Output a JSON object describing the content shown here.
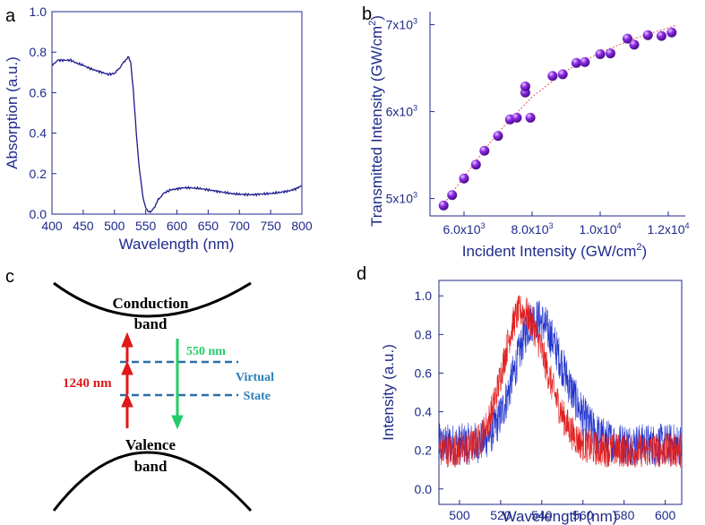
{
  "panel_labels": {
    "a": "a",
    "b": "b",
    "c": "c",
    "d": "d"
  },
  "chart_data": [
    {
      "id": "a",
      "type": "line",
      "xlabel": "Wavelength (nm)",
      "ylabel": "Absorption (a.u.)",
      "xlim": [
        400,
        800
      ],
      "ylim": [
        0,
        1.0
      ],
      "xticks": [
        "400",
        "450",
        "500",
        "550",
        "600",
        "650",
        "700",
        "750",
        "800"
      ],
      "yticks": [
        "0.0",
        "0.2",
        "0.4",
        "0.6",
        "0.8",
        "1.0"
      ],
      "series": [
        {
          "name": "absorption",
          "color": "#1a1a8c",
          "x": [
            400,
            405,
            410,
            420,
            430,
            440,
            450,
            460,
            470,
            480,
            490,
            500,
            505,
            510,
            515,
            520,
            523,
            526,
            530,
            535,
            540,
            545,
            548,
            552,
            556,
            560,
            565,
            570,
            575,
            580,
            590,
            600,
            610,
            620,
            630,
            640,
            650,
            660,
            670,
            680,
            690,
            700,
            710,
            720,
            730,
            740,
            750,
            760,
            770,
            780,
            790,
            800
          ],
          "y": [
            0.73,
            0.75,
            0.76,
            0.76,
            0.76,
            0.745,
            0.735,
            0.72,
            0.71,
            0.7,
            0.69,
            0.695,
            0.71,
            0.73,
            0.75,
            0.77,
            0.775,
            0.75,
            0.62,
            0.4,
            0.22,
            0.1,
            0.05,
            0.02,
            0.01,
            0.015,
            0.04,
            0.07,
            0.09,
            0.105,
            0.12,
            0.125,
            0.13,
            0.13,
            0.128,
            0.125,
            0.12,
            0.115,
            0.11,
            0.105,
            0.1,
            0.098,
            0.097,
            0.096,
            0.098,
            0.1,
            0.102,
            0.105,
            0.11,
            0.115,
            0.125,
            0.14
          ]
        }
      ]
    },
    {
      "id": "b",
      "type": "scatter",
      "xlabel": "Incident Intensity (GW/cm",
      "xlabel_sup": "2",
      "xlabel_end": ")",
      "ylabel": "Transmitted Intensity (GW/cm",
      "ylabel_sup": "2",
      "ylabel_end": ")",
      "xlim": [
        5000,
        12500
      ],
      "ylim": [
        4800,
        7150
      ],
      "xticks": [
        {
          "v": 6000,
          "m": "6.0x10",
          "e": "3"
        },
        {
          "v": 8000,
          "m": "8.0x10",
          "e": "3"
        },
        {
          "v": 10000,
          "m": "1.0x10",
          "e": "4"
        },
        {
          "v": 12000,
          "m": "1.2x10",
          "e": "4"
        }
      ],
      "yticks": [
        {
          "v": 5000,
          "m": "5x10",
          "e": "3"
        },
        {
          "v": 6000,
          "m": "6x10",
          "e": "3"
        },
        {
          "v": 7000,
          "m": "7x10",
          "e": "3"
        }
      ],
      "points": [
        [
          5400,
          4920
        ],
        [
          5650,
          5040
        ],
        [
          6000,
          5230
        ],
        [
          6350,
          5390
        ],
        [
          6600,
          5550
        ],
        [
          7000,
          5720
        ],
        [
          7350,
          5910
        ],
        [
          7550,
          5930
        ],
        [
          7800,
          6220
        ],
        [
          7800,
          6290
        ],
        [
          7950,
          5930
        ],
        [
          8600,
          6410
        ],
        [
          8900,
          6430
        ],
        [
          9300,
          6560
        ],
        [
          9550,
          6570
        ],
        [
          10000,
          6660
        ],
        [
          10300,
          6670
        ],
        [
          10800,
          6840
        ],
        [
          11000,
          6770
        ],
        [
          11400,
          6880
        ],
        [
          11800,
          6870
        ],
        [
          12100,
          6910
        ]
      ],
      "fit": [
        [
          5300,
          4880
        ],
        [
          6000,
          5250
        ],
        [
          7000,
          5760
        ],
        [
          8000,
          6170
        ],
        [
          9000,
          6470
        ],
        [
          10000,
          6680
        ],
        [
          11000,
          6840
        ],
        [
          12200,
          6990
        ]
      ],
      "colors": {
        "point": "#8a2be2",
        "fit": "#e05555"
      }
    },
    {
      "id": "d",
      "type": "line",
      "xlabel": "Wavelength (nm)",
      "ylabel": "Intensity (a.u.)",
      "xlim": [
        490,
        608
      ],
      "ylim": [
        -0.08,
        1.08
      ],
      "xticks": [
        "500",
        "520",
        "540",
        "560",
        "580",
        "600"
      ],
      "yticks": [
        "0.0",
        "0.2",
        "0.4",
        "0.6",
        "0.8",
        "1.0"
      ],
      "series": [
        {
          "name": "blue",
          "color": "#2233cc",
          "peak": 537,
          "width": 10,
          "amp": 0.65,
          "base": 0.23,
          "noise": 0.11
        },
        {
          "name": "red",
          "color": "#e02020",
          "peak": 530,
          "width": 9,
          "amp": 0.72,
          "base": 0.2,
          "noise": 0.09
        }
      ]
    }
  ],
  "diagram_c": {
    "conduction": "Conduction",
    "conduction2": "band",
    "valence": "Valence",
    "valence2": "band",
    "virtual": "Virtual",
    "state": "State",
    "pump_label": "1240 nm",
    "emit_label": "550 nm",
    "colors": {
      "pump": "#e01818",
      "emit": "#22cc66",
      "virtual": "#2a6fa8",
      "label_blue": "#2a7fb8"
    }
  }
}
